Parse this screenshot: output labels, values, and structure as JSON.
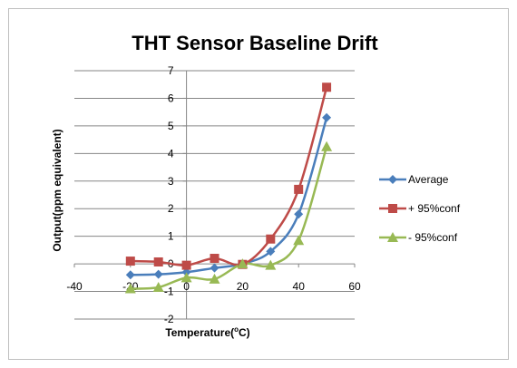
{
  "chart_data": {
    "type": "line",
    "title": "THT Sensor Baseline Drift",
    "xlabel": "Temperature(°C)",
    "xlabel_parts": {
      "main": "Temperature(",
      "sup": "o",
      "unit": "C)"
    },
    "ylabel": "Output(ppm equivalent)",
    "xlim": [
      -40,
      60
    ],
    "ylim": [
      -2,
      7
    ],
    "xticks": [
      -40,
      -20,
      0,
      20,
      40,
      60
    ],
    "yticks": [
      -2,
      -1,
      0,
      1,
      2,
      3,
      4,
      5,
      6,
      7
    ],
    "grid": "horizontal",
    "legend_position": "right",
    "x": [
      -20,
      -10,
      0,
      10,
      20,
      30,
      40,
      50
    ],
    "series": [
      {
        "name": "Average",
        "color": "#4a7ebb",
        "marker": "diamond",
        "values": [
          -0.4,
          -0.38,
          -0.3,
          -0.15,
          0.0,
          0.45,
          1.8,
          5.3
        ]
      },
      {
        "name": "+ 95%conf",
        "color": "#be4b48",
        "marker": "square",
        "values": [
          0.1,
          0.07,
          -0.05,
          0.2,
          -0.02,
          0.9,
          2.7,
          6.4
        ]
      },
      {
        "name": "- 95%conf",
        "color": "#98b954",
        "marker": "triangle",
        "values": [
          -0.9,
          -0.85,
          -0.5,
          -0.55,
          0.0,
          -0.05,
          0.85,
          4.25
        ]
      }
    ]
  }
}
